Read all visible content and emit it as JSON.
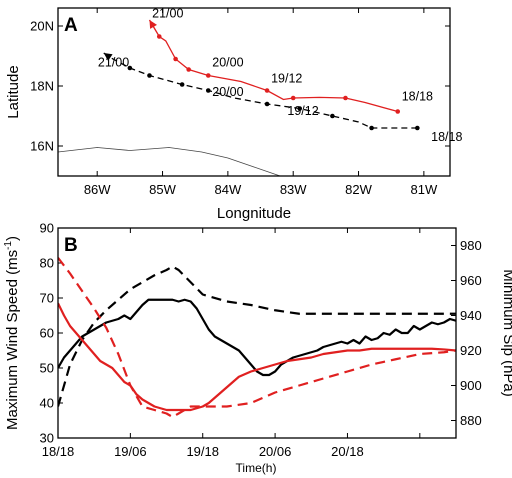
{
  "chart_data": [
    {
      "type": "line",
      "panel_label": "A",
      "xlabel": "Longnitude",
      "ylabel": "Latitude",
      "xlim": [
        -86.6,
        -80.6
      ],
      "ylim": [
        15.0,
        20.6
      ],
      "x_tick_values": [
        -86,
        -85,
        -84,
        -83,
        -82,
        -81
      ],
      "x_tick_labels": [
        "86W",
        "85W",
        "84W",
        "83W",
        "82W",
        "81W"
      ],
      "y_tick_values": [
        16,
        18,
        20
      ],
      "y_tick_labels": [
        "16N",
        "18N",
        "20N"
      ],
      "series": [
        {
          "style": "solid",
          "color": "#e02020",
          "points": [
            [
              -81.4,
              17.15
            ],
            [
              -81.9,
              17.45
            ],
            [
              -82.2,
              17.6
            ],
            [
              -82.6,
              17.62
            ],
            [
              -83.0,
              17.6
            ],
            [
              -83.15,
              17.55
            ],
            [
              -83.4,
              17.85
            ],
            [
              -83.8,
              18.15
            ],
            [
              -84.3,
              18.35
            ],
            [
              -84.6,
              18.55
            ],
            [
              -84.8,
              18.9
            ],
            [
              -84.95,
              19.5
            ],
            [
              -85.05,
              19.65
            ],
            [
              -85.2,
              20.2
            ]
          ],
          "markers": [
            [
              -81.4,
              17.15
            ],
            [
              -82.2,
              17.6
            ],
            [
              -83.0,
              17.6
            ],
            [
              -83.4,
              17.85
            ],
            [
              -84.3,
              18.35
            ],
            [
              -84.6,
              18.55
            ],
            [
              -84.8,
              18.9
            ],
            [
              -85.05,
              19.65
            ]
          ],
          "end": [
            -85.2,
            20.2
          ]
        },
        {
          "style": "dashed",
          "color": "#000000",
          "points": [
            [
              -81.1,
              16.6
            ],
            [
              -81.5,
              16.6
            ],
            [
              -81.8,
              16.6
            ],
            [
              -82.0,
              16.8
            ],
            [
              -82.4,
              17.0
            ],
            [
              -82.9,
              17.25
            ],
            [
              -83.4,
              17.4
            ],
            [
              -83.9,
              17.6
            ],
            [
              -84.3,
              17.85
            ],
            [
              -84.7,
              18.05
            ],
            [
              -85.2,
              18.35
            ],
            [
              -85.5,
              18.6
            ],
            [
              -85.8,
              18.95
            ],
            [
              -85.9,
              19.1
            ]
          ],
          "markers": [
            [
              -81.1,
              16.6
            ],
            [
              -81.8,
              16.6
            ],
            [
              -82.4,
              17.0
            ],
            [
              -82.9,
              17.25
            ],
            [
              -83.4,
              17.4
            ],
            [
              -84.3,
              17.85
            ],
            [
              -84.7,
              18.05
            ],
            [
              -85.2,
              18.35
            ],
            [
              -85.5,
              18.6
            ]
          ],
          "end": [
            -85.9,
            19.1
          ]
        }
      ],
      "annotations": [
        {
          "text": "21/00",
          "color": "red",
          "at": [
            -85.22,
            20.22
          ]
        },
        {
          "text": "21/00",
          "color": "black",
          "at": [
            -86.05,
            18.58
          ]
        },
        {
          "text": "20/00",
          "color": "red",
          "at": [
            -84.3,
            18.58
          ]
        },
        {
          "text": "20/00",
          "color": "black",
          "at": [
            -84.3,
            17.6
          ]
        },
        {
          "text": "19/12",
          "color": "red",
          "at": [
            -83.4,
            18.05
          ]
        },
        {
          "text": "19/12",
          "color": "black",
          "at": [
            -83.15,
            16.97
          ]
        },
        {
          "text": "18/18",
          "color": "red",
          "at": [
            -81.4,
            17.45
          ]
        },
        {
          "text": "18/18",
          "color": "black",
          "at": [
            -80.95,
            16.1
          ]
        }
      ],
      "coastline": [
        [
          -86.6,
          15.8
        ],
        [
          -86.0,
          15.95
        ],
        [
          -85.5,
          15.85
        ],
        [
          -84.9,
          15.95
        ],
        [
          -84.4,
          15.8
        ],
        [
          -84.0,
          15.6
        ],
        [
          -83.6,
          15.3
        ],
        [
          -83.2,
          15.0
        ]
      ]
    },
    {
      "type": "line",
      "panel_label": "B",
      "xlabel": "Time(h)",
      "ylabel_left": "Maximum Wind Speed (ms",
      "ylabel_left_sup": "-1",
      "ylabel_left_end": ")",
      "ylabel_right": "Minimum Slp (hPa)",
      "xlim": [
        0,
        66
      ],
      "x_tick_values": [
        0,
        12,
        24,
        36,
        48,
        60
      ],
      "x_tick_labels": [
        "18/18",
        "19/06",
        "19/18",
        "20/06",
        "20/18"
      ],
      "x_tick_label_values": [
        0,
        12,
        24,
        36,
        48
      ],
      "ylim_left": [
        30,
        90
      ],
      "y_left_ticks": [
        30,
        40,
        50,
        60,
        70,
        80,
        90
      ],
      "ylim_right": [
        870,
        990
      ],
      "y_right_ticks": [
        880,
        900,
        920,
        940,
        960,
        980
      ],
      "series": [
        {
          "axis": "left",
          "style": "solid",
          "color": "#000000",
          "x": [
            0,
            1,
            2,
            3,
            4,
            5,
            6,
            7,
            8,
            9,
            10,
            11,
            12,
            13,
            14,
            15,
            16,
            17,
            18,
            19,
            20,
            21,
            22,
            23,
            24,
            25,
            26,
            27,
            28,
            29,
            30,
            31,
            32,
            33,
            34,
            35,
            36,
            37,
            38,
            39,
            40,
            41,
            42,
            43,
            44,
            45,
            46,
            47,
            48,
            49,
            50,
            51,
            52,
            53,
            54,
            55,
            56,
            57,
            58,
            59,
            60,
            61,
            62,
            63,
            64,
            65,
            66
          ],
          "values": [
            50,
            53,
            55,
            57,
            59,
            60,
            61,
            62,
            63,
            63.5,
            64,
            65,
            64,
            66,
            68,
            69.5,
            69.5,
            69.5,
            69.5,
            69.5,
            69,
            69.5,
            69,
            67,
            64,
            61,
            59,
            58,
            57,
            56,
            55,
            53,
            51,
            49,
            48,
            48,
            49,
            51,
            52,
            53,
            53.5,
            54,
            54.5,
            55,
            56,
            56.5,
            57,
            57.5,
            57,
            58,
            57,
            59,
            58,
            58.5,
            60,
            59.5,
            61,
            60,
            60,
            62,
            61,
            62,
            63,
            62.5,
            63,
            64,
            63.5
          ]
        },
        {
          "axis": "right",
          "style": "dashed",
          "color": "#000000",
          "x": [
            0,
            2,
            4,
            6,
            8,
            10,
            12,
            14,
            16,
            18,
            19,
            20,
            22,
            24,
            28,
            32,
            36,
            40,
            44,
            48,
            52,
            56,
            60,
            64,
            66
          ],
          "values": [
            888,
            912,
            926,
            936,
            943,
            949,
            955,
            959,
            963,
            966,
            968,
            966,
            959,
            952,
            948,
            946,
            943,
            941,
            941,
            941,
            941,
            941,
            941,
            941,
            941
          ]
        },
        {
          "axis": "left",
          "style": "solid",
          "color": "#e02020",
          "x": [
            0,
            1,
            2,
            3,
            4,
            5,
            6,
            7,
            8,
            9,
            10,
            11,
            12,
            13,
            14,
            15,
            16,
            17,
            18,
            19,
            20,
            21,
            22,
            23,
            24,
            25,
            26,
            27,
            28,
            29,
            30,
            32,
            34,
            36,
            38,
            40,
            42,
            44,
            46,
            48,
            50,
            52,
            54,
            56,
            58,
            60,
            62,
            64,
            66
          ],
          "values": [
            68.5,
            65,
            62,
            60,
            58,
            56,
            54,
            52,
            51,
            50,
            48,
            46,
            45,
            42.5,
            41,
            40,
            39,
            38.5,
            38,
            38,
            38,
            38,
            38,
            38.5,
            39,
            40,
            41.5,
            43,
            44.5,
            46,
            47.5,
            49,
            50,
            51,
            52,
            52.5,
            53,
            54,
            54.5,
            55,
            55,
            55.5,
            55.5,
            55.5,
            55.5,
            55.5,
            55.5,
            55.3,
            55
          ]
        },
        {
          "axis": "right",
          "style": "dashed",
          "color": "#e02020",
          "x": [
            0,
            2,
            4,
            6,
            8,
            10,
            12,
            14,
            16,
            18,
            19,
            20,
            22,
            24,
            28,
            32,
            36,
            40,
            44,
            48,
            52,
            56,
            60,
            64,
            66
          ],
          "values": [
            973,
            964,
            954,
            944,
            933,
            918,
            900,
            888,
            886,
            884,
            882,
            884,
            888,
            888,
            888,
            890,
            896,
            900,
            904,
            908,
            912,
            915,
            918,
            919,
            920
          ]
        }
      ]
    }
  ]
}
